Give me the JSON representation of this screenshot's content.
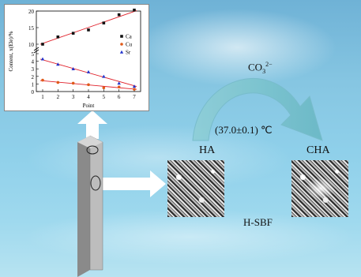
{
  "labels": {
    "ha": "HA",
    "cha": "CHA",
    "temperature": "(37.0±0.1) ℃",
    "solution": "H-SBF",
    "reagent_base": "CO",
    "reagent_sub": "3",
    "reagent_sup": "2−"
  },
  "chart_data": {
    "type": "scatter",
    "xlabel": "Point",
    "ylabel": "Content, x(Ele)/%",
    "x": [
      1,
      2,
      3,
      4,
      5,
      6,
      7
    ],
    "xticks": [
      "1",
      "2",
      "3",
      "4",
      "5",
      "6",
      "7"
    ],
    "yticks": [
      "0",
      "1",
      "2",
      "3",
      "4",
      "5",
      "10",
      "15",
      "20"
    ],
    "y_axis_break": "between 5 and 10",
    "legend_position": "right",
    "series": [
      {
        "name": "Ca",
        "marker": "square",
        "color": "#111111",
        "values": [
          10.0,
          12.2,
          13.3,
          14.3,
          16.4,
          18.9,
          20.3
        ]
      },
      {
        "name": "Cu",
        "marker": "circle",
        "color": "#e05a1a",
        "values": [
          1.5,
          1.2,
          1.1,
          0.9,
          0.5,
          0.6,
          0.3
        ]
      },
      {
        "name": "Sr",
        "marker": "triangle",
        "color": "#2233cc",
        "values": [
          4.3,
          3.6,
          3.0,
          2.6,
          2.0,
          1.1,
          0.7
        ]
      }
    ],
    "fit_line_color": "#e0202a"
  },
  "colors": {
    "arrow_curve": "#7ec3cf",
    "arrow_white": "#ffffff",
    "chart_bg": "#ffffff"
  }
}
